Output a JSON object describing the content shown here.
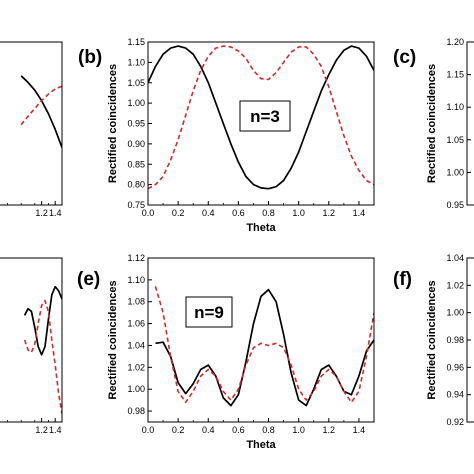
{
  "chart_data": [
    {
      "id": "a",
      "panel_label": "",
      "type": "line",
      "xlabel": "",
      "ylabel": "",
      "xlim": [
        0.0,
        1.5
      ],
      "ylim": [
        0.95,
        1.2
      ],
      "xticks": [
        "1.2",
        "1.4"
      ],
      "yticks": [],
      "annotation": "",
      "series": [
        {
          "style": "solid",
          "color": "#000000",
          "x": [
            0.9,
            1.0,
            1.1,
            1.2,
            1.3,
            1.4,
            1.5
          ],
          "y": [
            1.148,
            1.138,
            1.126,
            1.11,
            1.09,
            1.066,
            1.038
          ]
        },
        {
          "style": "dashed",
          "color": "#d42a2a",
          "x": [
            0.9,
            1.0,
            1.1,
            1.2,
            1.3,
            1.4,
            1.5
          ],
          "y": [
            1.073,
            1.086,
            1.098,
            1.11,
            1.12,
            1.128,
            1.132
          ]
        }
      ]
    },
    {
      "id": "b",
      "panel_label": "(b)",
      "type": "line",
      "xlabel": "Theta",
      "ylabel": "Rectified coincidences",
      "xlim": [
        0.0,
        1.5
      ],
      "ylim": [
        0.75,
        1.15
      ],
      "xticks": [
        "0.0",
        "0.2",
        "0.4",
        "0.6",
        "0.8",
        "1.0",
        "1.2",
        "1.4"
      ],
      "yticks": [
        "0.75",
        "0.80",
        "0.85",
        "0.90",
        "0.95",
        "1.00",
        "1.05",
        "1.10",
        "1.15"
      ],
      "annotation": "n=3",
      "series": [
        {
          "style": "solid",
          "color": "#000000",
          "x": [
            0.0,
            0.05,
            0.1,
            0.15,
            0.2,
            0.25,
            0.3,
            0.35,
            0.4,
            0.45,
            0.5,
            0.55,
            0.6,
            0.65,
            0.7,
            0.75,
            0.8,
            0.85,
            0.9,
            0.95,
            1.0,
            1.05,
            1.1,
            1.15,
            1.2,
            1.25,
            1.3,
            1.35,
            1.4,
            1.45,
            1.5
          ],
          "y": [
            1.05,
            1.09,
            1.12,
            1.135,
            1.14,
            1.135,
            1.12,
            1.09,
            1.05,
            1.0,
            0.95,
            0.9,
            0.855,
            0.82,
            0.8,
            0.792,
            0.79,
            0.795,
            0.81,
            0.84,
            0.88,
            0.93,
            0.98,
            1.03,
            1.07,
            1.105,
            1.13,
            1.14,
            1.135,
            1.115,
            1.08
          ]
        },
        {
          "style": "dashed",
          "color": "#d42a2a",
          "x": [
            0.0,
            0.05,
            0.1,
            0.15,
            0.2,
            0.25,
            0.3,
            0.35,
            0.4,
            0.45,
            0.5,
            0.55,
            0.6,
            0.65,
            0.7,
            0.75,
            0.8,
            0.85,
            0.9,
            0.95,
            1.0,
            1.05,
            1.1,
            1.15,
            1.2,
            1.25,
            1.3,
            1.35,
            1.4,
            1.45,
            1.5
          ],
          "y": [
            0.79,
            0.8,
            0.82,
            0.86,
            0.91,
            0.97,
            1.03,
            1.08,
            1.115,
            1.135,
            1.14,
            1.138,
            1.128,
            1.11,
            1.08,
            1.06,
            1.058,
            1.075,
            1.1,
            1.125,
            1.138,
            1.138,
            1.12,
            1.09,
            1.04,
            0.98,
            0.92,
            0.87,
            0.835,
            0.81,
            0.8
          ]
        }
      ]
    },
    {
      "id": "c",
      "panel_label": "(c)",
      "type": "line",
      "xlabel": "",
      "ylabel": "Rectified coincidences",
      "xlim": [
        0.0,
        1.5
      ],
      "ylim": [
        0.95,
        1.2
      ],
      "xticks": [],
      "yticks": [
        "0.95",
        "1.00",
        "1.05",
        "1.10",
        "1.15",
        "1.20"
      ],
      "annotation": "",
      "series": []
    },
    {
      "id": "d",
      "panel_label": "",
      "type": "line",
      "xlabel": "",
      "ylabel": "",
      "xlim": [
        0.0,
        1.5
      ],
      "ylim": [
        0.92,
        1.12
      ],
      "xticks": [
        "1.2",
        "1.4"
      ],
      "yticks": [],
      "annotation": "",
      "series": [
        {
          "style": "solid",
          "color": "#000000",
          "x": [
            0.95,
            1.0,
            1.05,
            1.1,
            1.15,
            1.2,
            1.25,
            1.3,
            1.35,
            1.4,
            1.45,
            1.5
          ],
          "y": [
            1.05,
            1.058,
            1.055,
            1.035,
            1.012,
            1.002,
            1.012,
            1.045,
            1.075,
            1.085,
            1.08,
            1.07
          ]
        },
        {
          "style": "dashed",
          "color": "#d42a2a",
          "x": [
            0.95,
            1.0,
            1.05,
            1.1,
            1.15,
            1.2,
            1.25,
            1.3,
            1.35,
            1.4,
            1.45,
            1.5
          ],
          "y": [
            1.02,
            1.008,
            1.005,
            1.015,
            1.04,
            1.062,
            1.068,
            1.055,
            1.02,
            0.99,
            0.955,
            0.93
          ]
        }
      ]
    },
    {
      "id": "e",
      "panel_label": "(e)",
      "type": "line",
      "xlabel": "Theta",
      "ylabel": "Rectified coincidences",
      "xlim": [
        0.0,
        1.5
      ],
      "ylim": [
        0.97,
        1.12
      ],
      "xticks": [
        "0.0",
        "0.2",
        "0.4",
        "0.6",
        "0.8",
        "1.0",
        "1.2",
        "1.4"
      ],
      "yticks": [
        "0.98",
        "1.00",
        "1.02",
        "1.04",
        "1.06",
        "1.08",
        "1.10",
        "1.12"
      ],
      "annotation": "n=9",
      "series": [
        {
          "style": "solid",
          "color": "#000000",
          "x": [
            0.05,
            0.1,
            0.15,
            0.2,
            0.25,
            0.3,
            0.35,
            0.4,
            0.45,
            0.5,
            0.55,
            0.6,
            0.65,
            0.7,
            0.75,
            0.8,
            0.85,
            0.9,
            0.95,
            1.0,
            1.05,
            1.1,
            1.15,
            1.2,
            1.25,
            1.3,
            1.35,
            1.4,
            1.45,
            1.5
          ],
          "y": [
            1.042,
            1.043,
            1.03,
            1.006,
            0.996,
            1.005,
            1.018,
            1.022,
            1.012,
            0.992,
            0.985,
            0.995,
            1.025,
            1.06,
            1.085,
            1.091,
            1.08,
            1.05,
            1.015,
            0.99,
            0.985,
            1.0,
            1.018,
            1.022,
            1.012,
            0.998,
            0.995,
            1.012,
            1.035,
            1.045
          ]
        },
        {
          "style": "dashed",
          "color": "#d42a2a",
          "x": [
            0.05,
            0.1,
            0.15,
            0.2,
            0.25,
            0.3,
            0.35,
            0.4,
            0.45,
            0.5,
            0.55,
            0.6,
            0.65,
            0.7,
            0.75,
            0.8,
            0.85,
            0.9,
            0.95,
            1.0,
            1.05,
            1.1,
            1.15,
            1.2,
            1.25,
            1.3,
            1.35,
            1.4,
            1.45,
            1.5
          ],
          "y": [
            1.094,
            1.07,
            1.03,
            0.998,
            0.988,
            0.998,
            1.012,
            1.018,
            1.012,
            0.998,
            0.99,
            1.0,
            1.022,
            1.038,
            1.042,
            1.04,
            1.042,
            1.038,
            1.022,
            1.0,
            0.99,
            0.998,
            1.012,
            1.018,
            1.012,
            0.998,
            0.988,
            0.998,
            1.03,
            1.07
          ]
        }
      ]
    },
    {
      "id": "f",
      "panel_label": "(f)",
      "type": "line",
      "xlabel": "",
      "ylabel": "Rectified coincidences",
      "xlim": [
        0.0,
        1.5
      ],
      "ylim": [
        0.92,
        1.04
      ],
      "xticks": [],
      "yticks": [
        "0.92",
        "0.94",
        "0.96",
        "0.98",
        "1.00",
        "1.02",
        "1.04"
      ],
      "annotation": "",
      "series": []
    }
  ]
}
